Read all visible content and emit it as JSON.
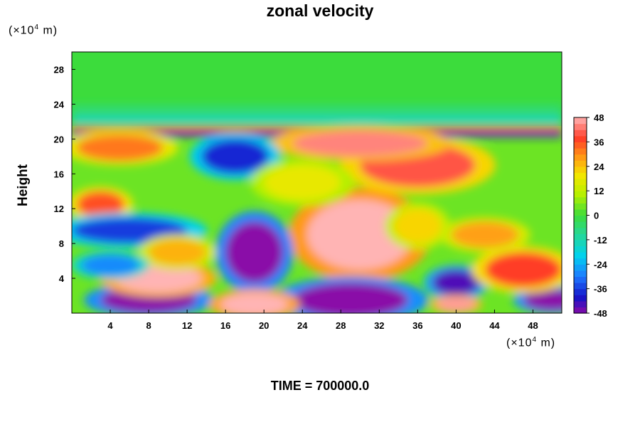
{
  "chart_data": {
    "type": "heatmap",
    "title": "zonal velocity",
    "ylabel": "Height",
    "y_unit_prefix": "(×10",
    "y_unit_exp": "4",
    "y_unit_suffix": " m)",
    "x_unit_prefix": "(×10",
    "x_unit_exp": "4",
    "x_unit_suffix": " m)",
    "xlim": [
      0,
      51
    ],
    "ylim": [
      0,
      30
    ],
    "x_ticks": [
      4,
      8,
      12,
      16,
      20,
      24,
      28,
      32,
      36,
      40,
      44,
      48
    ],
    "y_ticks": [
      4,
      8,
      12,
      16,
      20,
      24,
      28
    ],
    "colorbar": {
      "min": -48,
      "max": 48,
      "ticks": [
        48,
        36,
        24,
        12,
        0,
        -12,
        -24,
        -36,
        -48
      ],
      "stops": [
        {
          "value": -48,
          "color": "#8a0aa8"
        },
        {
          "value": -40,
          "color": "#1414c8"
        },
        {
          "value": -30,
          "color": "#1e78ff"
        },
        {
          "value": -20,
          "color": "#00d2f0"
        },
        {
          "value": -8,
          "color": "#2ad88c"
        },
        {
          "value": 0,
          "color": "#3cdc3c"
        },
        {
          "value": 10,
          "color": "#b4f000"
        },
        {
          "value": 20,
          "color": "#f5e600"
        },
        {
          "value": 28,
          "color": "#ffa014"
        },
        {
          "value": 38,
          "color": "#ff3c28"
        },
        {
          "value": 48,
          "color": "#ffb4b4"
        }
      ]
    },
    "blobs": [
      {
        "x": 30,
        "y": 9,
        "rx": 5.5,
        "ry": 4,
        "value": 52
      },
      {
        "x": 36,
        "y": 17,
        "rx": 6,
        "ry": 2.5,
        "value": 40
      },
      {
        "x": 30,
        "y": 19.5,
        "rx": 7,
        "ry": 1.5,
        "value": 44
      },
      {
        "x": 19,
        "y": 7,
        "rx": 3,
        "ry": 3.5,
        "value": -52
      },
      {
        "x": 8,
        "y": 1.5,
        "rx": 5,
        "ry": 1.5,
        "value": -50
      },
      {
        "x": 29,
        "y": 1.5,
        "rx": 6,
        "ry": 2,
        "value": -50
      },
      {
        "x": 40,
        "y": 3.5,
        "rx": 2.5,
        "ry": 1.5,
        "value": -44
      },
      {
        "x": 50,
        "y": 1.5,
        "rx": 3,
        "ry": 1.2,
        "value": -48
      },
      {
        "x": 9,
        "y": 4,
        "rx": 4.5,
        "ry": 1.6,
        "value": 48
      },
      {
        "x": 19,
        "y": 1,
        "rx": 3.5,
        "ry": 1.3,
        "value": 50
      },
      {
        "x": 47,
        "y": 5,
        "rx": 4,
        "ry": 2,
        "value": 38
      },
      {
        "x": 3,
        "y": 12.5,
        "rx": 2.5,
        "ry": 1.5,
        "value": 36
      },
      {
        "x": 6,
        "y": 9.5,
        "rx": 6,
        "ry": 1.5,
        "value": -36
      },
      {
        "x": 17,
        "y": 18,
        "rx": 3.5,
        "ry": 2,
        "value": -38
      },
      {
        "x": 40,
        "y": 1,
        "rx": 2,
        "ry": 0.8,
        "value": 46
      },
      {
        "x": 5,
        "y": 19,
        "rx": 4.5,
        "ry": 1.5,
        "value": 32
      },
      {
        "x": 43,
        "y": 9,
        "rx": 3.5,
        "ry": 1.5,
        "value": 28
      },
      {
        "x": 11,
        "y": 7,
        "rx": 3,
        "ry": 1.5,
        "value": 26
      },
      {
        "x": 24,
        "y": 15,
        "rx": 4,
        "ry": 2,
        "value": 18
      },
      {
        "x": 4,
        "y": 5.5,
        "rx": 3,
        "ry": 1.2,
        "value": -28
      },
      {
        "x": 36,
        "y": 10,
        "rx": 2.5,
        "ry": 2,
        "value": 22
      }
    ],
    "bands": [
      {
        "y": 21.2,
        "h": 0.35,
        "value": 40
      },
      {
        "y": 20.6,
        "h": 0.45,
        "value": -40
      },
      {
        "y": 22.3,
        "h": 0.6,
        "value": -18
      },
      {
        "y": 23.5,
        "h": 0.8,
        "value": -6
      }
    ]
  },
  "time_label": "TIME = 700000.0"
}
